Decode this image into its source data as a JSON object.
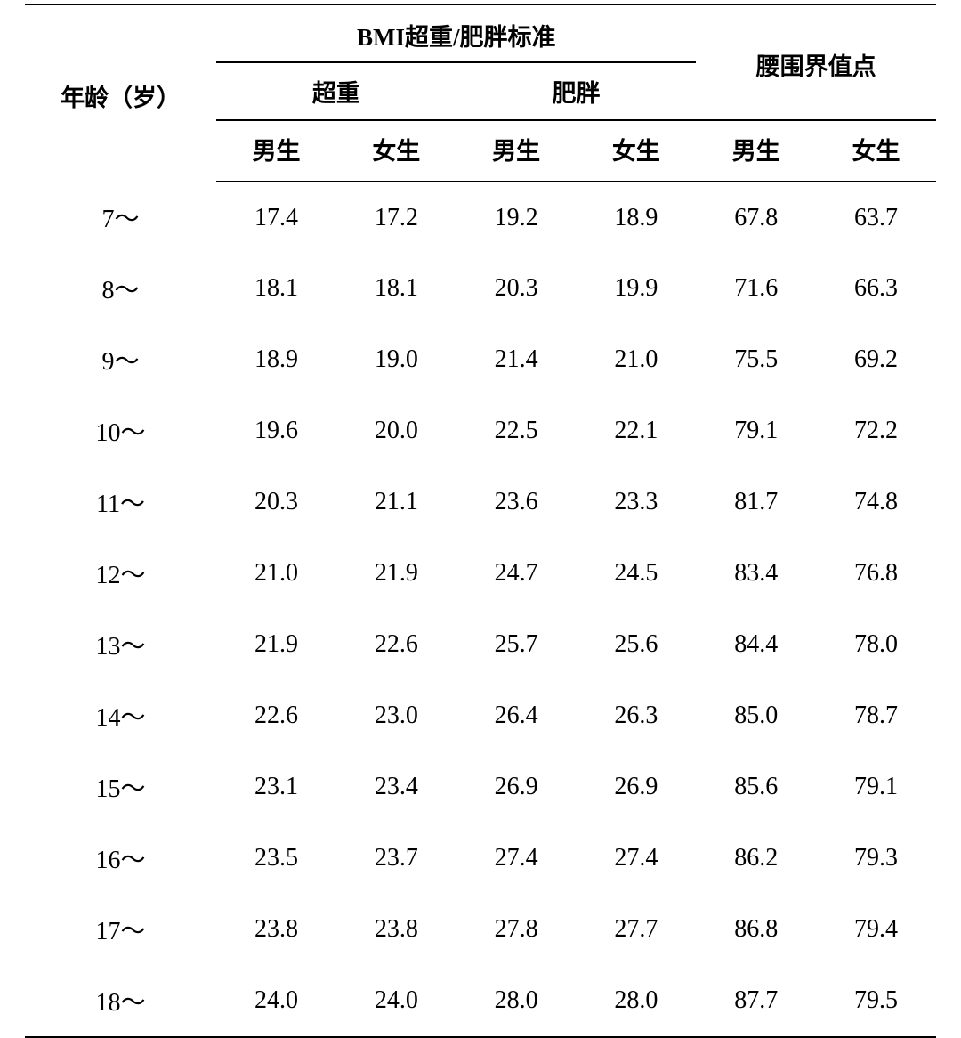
{
  "type": "table",
  "background_color": "#ffffff",
  "text_color": "#000000",
  "border_color": "#000000",
  "font_family": "SimSun",
  "header_fontsize": 27,
  "body_fontsize": 28,
  "border_width": 2,
  "columns": {
    "age_label": "年龄（岁）",
    "bmi_group_label": "BMI超重/肥胖标准",
    "overweight_label": "超重",
    "obese_label": "肥胖",
    "waist_label": "腰围界值点",
    "male_label": "男生",
    "female_label": "女生"
  },
  "col_widths_pct": {
    "age": 21,
    "value": 13.16
  },
  "rows": [
    {
      "age": "7～",
      "ow_m": "17.4",
      "ow_f": "17.2",
      "ob_m": "19.2",
      "ob_f": "18.9",
      "w_m": "67.8",
      "w_f": "63.7"
    },
    {
      "age": "8～",
      "ow_m": "18.1",
      "ow_f": "18.1",
      "ob_m": "20.3",
      "ob_f": "19.9",
      "w_m": "71.6",
      "w_f": "66.3"
    },
    {
      "age": "9～",
      "ow_m": "18.9",
      "ow_f": "19.0",
      "ob_m": "21.4",
      "ob_f": "21.0",
      "w_m": "75.5",
      "w_f": "69.2"
    },
    {
      "age": "10～",
      "ow_m": "19.6",
      "ow_f": "20.0",
      "ob_m": "22.5",
      "ob_f": "22.1",
      "w_m": "79.1",
      "w_f": "72.2"
    },
    {
      "age": "11～",
      "ow_m": "20.3",
      "ow_f": "21.1",
      "ob_m": "23.6",
      "ob_f": "23.3",
      "w_m": "81.7",
      "w_f": "74.8"
    },
    {
      "age": "12～",
      "ow_m": "21.0",
      "ow_f": "21.9",
      "ob_m": "24.7",
      "ob_f": "24.5",
      "w_m": "83.4",
      "w_f": "76.8"
    },
    {
      "age": "13～",
      "ow_m": "21.9",
      "ow_f": "22.6",
      "ob_m": "25.7",
      "ob_f": "25.6",
      "w_m": "84.4",
      "w_f": "78.0"
    },
    {
      "age": "14～",
      "ow_m": "22.6",
      "ow_f": "23.0",
      "ob_m": "26.4",
      "ob_f": "26.3",
      "w_m": "85.0",
      "w_f": "78.7"
    },
    {
      "age": "15～",
      "ow_m": "23.1",
      "ow_f": "23.4",
      "ob_m": "26.9",
      "ob_f": "26.9",
      "w_m": "85.6",
      "w_f": "79.1"
    },
    {
      "age": "16～",
      "ow_m": "23.5",
      "ow_f": "23.7",
      "ob_m": "27.4",
      "ob_f": "27.4",
      "w_m": "86.2",
      "w_f": "79.3"
    },
    {
      "age": "17～",
      "ow_m": "23.8",
      "ow_f": "23.8",
      "ob_m": "27.8",
      "ob_f": "27.7",
      "w_m": "86.8",
      "w_f": "79.4"
    },
    {
      "age": "18～",
      "ow_m": "24.0",
      "ow_f": "24.0",
      "ob_m": "28.0",
      "ob_f": "28.0",
      "w_m": "87.7",
      "w_f": "79.5"
    }
  ]
}
